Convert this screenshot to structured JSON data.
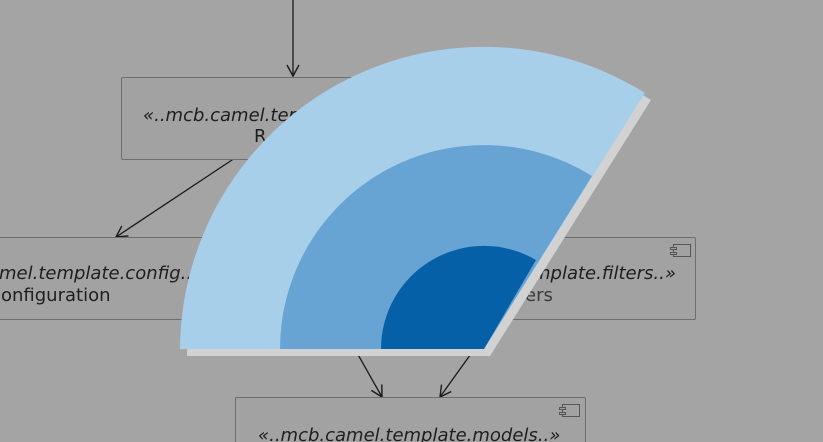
{
  "diagram": {
    "nodes": [
      {
        "id": "routes",
        "stereotype": "«..mcb.camel.ter",
        "name": "R"
      },
      {
        "id": "config",
        "stereotype": "mel.template.config..»",
        "name": "onfiguration"
      },
      {
        "id": "filters",
        "stereotype": "mplate.filters..»",
        "name": "ters"
      },
      {
        "id": "models",
        "stereotype": "«..mcb.camel.template.models..»",
        "name": ""
      }
    ]
  },
  "loading_overlay": {
    "icon": "wifi-signal-fan-icon",
    "colors": {
      "outer": "#a8cfea",
      "middle": "#67a3d3",
      "inner": "#0660a8",
      "shadow": "#d2d2d2"
    }
  },
  "colors": {
    "background": "#a4a4a4",
    "node_fill": "#a2a2a2",
    "node_border": "#6e6e6e",
    "edge": "#1a1a1a"
  }
}
